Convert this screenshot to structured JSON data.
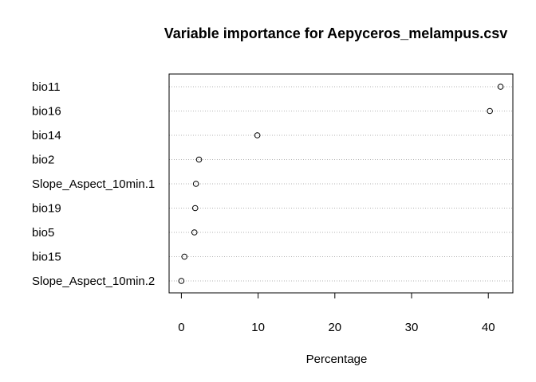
{
  "chart_data": {
    "type": "scatter",
    "style": "dotchart",
    "title": "Variable importance for  Aepyceros_melampus.csv",
    "xlabel": "Percentage",
    "ylabel": "",
    "xlim": [
      -1.6,
      43.2
    ],
    "xticks": [
      0,
      10,
      20,
      30,
      40
    ],
    "grid": "horizontal dotted lines",
    "categories": [
      "bio11",
      "bio16",
      "bio14",
      "bio2",
      "Slope_Aspect_10min.1",
      "bio19",
      "bio5",
      "bio15",
      "Slope_Aspect_10min.2"
    ],
    "values": [
      41.6,
      40.2,
      9.9,
      2.3,
      1.9,
      1.8,
      1.7,
      0.4,
      0.0
    ]
  }
}
